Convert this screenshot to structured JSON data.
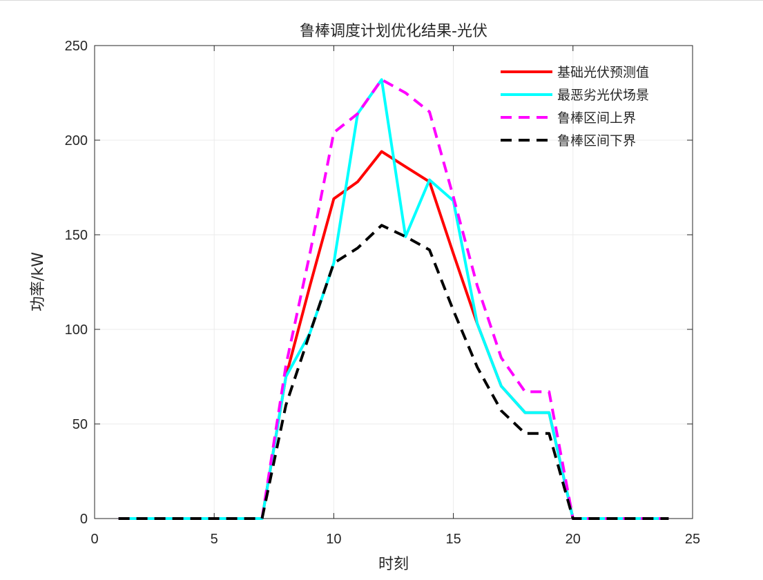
{
  "chart_data": {
    "type": "line",
    "title": "鲁棒调度计划优化结果-光伏",
    "xlabel": "时刻",
    "ylabel": "功率/kW",
    "xlim": [
      0,
      25
    ],
    "ylim": [
      0,
      250
    ],
    "xticks": [
      0,
      5,
      10,
      15,
      20,
      25
    ],
    "yticks": [
      0,
      50,
      100,
      150,
      200,
      250
    ],
    "grid": true,
    "legend_position": "top-right",
    "x": [
      1,
      2,
      3,
      4,
      5,
      6,
      7,
      8,
      9,
      10,
      11,
      12,
      13,
      14,
      15,
      16,
      17,
      18,
      19,
      20,
      21,
      22,
      23,
      24
    ],
    "series": [
      {
        "name": "基础光伏预测值",
        "color": "#ff0000",
        "dash": "solid",
        "values": [
          0,
          0,
          0,
          0,
          0,
          0,
          0,
          75,
          123,
          169,
          178,
          194,
          186,
          178,
          140,
          103,
          70,
          56,
          56,
          0,
          0,
          0,
          0,
          0
        ]
      },
      {
        "name": "最恶劣光伏场景",
        "color": "#00ffff",
        "dash": "solid",
        "values": [
          0,
          0,
          0,
          0,
          0,
          0,
          0,
          75,
          98,
          135,
          214,
          232,
          149,
          179,
          168,
          103,
          70,
          56,
          56,
          0,
          0,
          0,
          0,
          0
        ]
      },
      {
        "name": "鲁棒区间上界",
        "color": "#ff00ff",
        "dash": "dashed",
        "values": [
          0,
          0,
          0,
          0,
          0,
          0,
          0,
          81,
          140,
          204,
          214,
          232,
          225,
          215,
          170,
          123,
          85,
          67,
          67,
          0,
          0,
          0,
          0,
          0
        ]
      },
      {
        "name": "鲁棒区间下界",
        "color": "#000000",
        "dash": "dashed",
        "values": [
          0,
          0,
          0,
          0,
          0,
          0,
          0,
          60,
          98,
          135,
          143,
          155,
          149,
          142,
          110,
          80,
          57,
          45,
          45,
          0,
          0,
          0,
          0,
          0
        ]
      }
    ]
  }
}
